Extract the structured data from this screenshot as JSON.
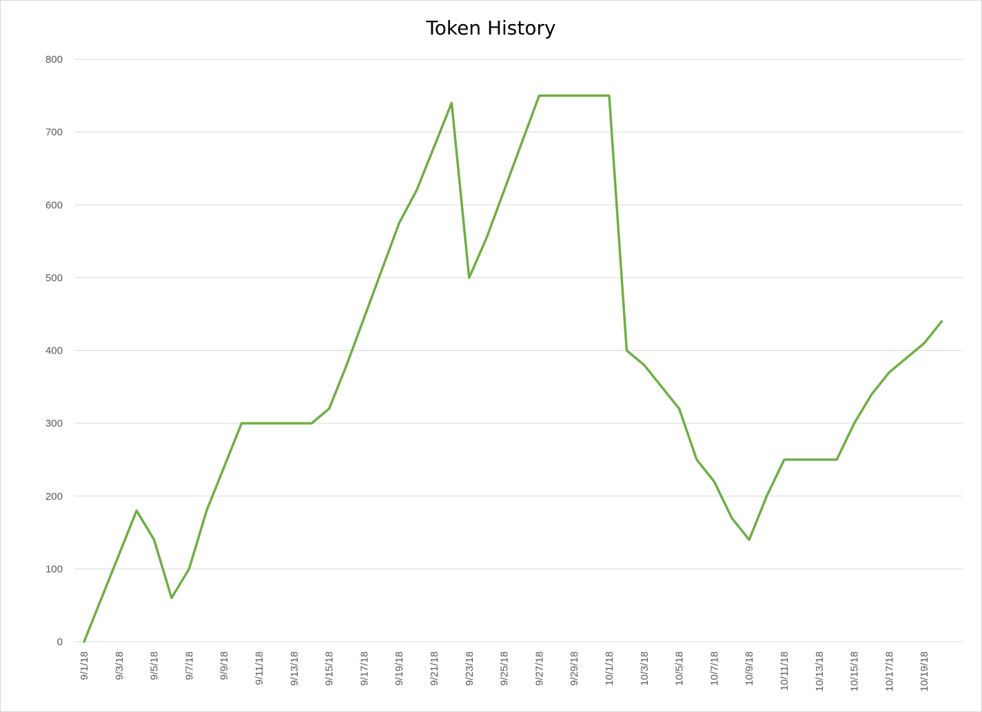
{
  "chart_data": {
    "type": "line",
    "title": "Token History",
    "xlabel": "",
    "ylabel": "",
    "ylim": [
      0,
      800
    ],
    "y_ticks": [
      0,
      100,
      200,
      300,
      400,
      500,
      600,
      700,
      800
    ],
    "grid": true,
    "legend": "none",
    "x_tick_labels": [
      "9/1/18",
      "9/3/18",
      "9/5/18",
      "9/7/18",
      "9/9/18",
      "9/11/18",
      "9/13/18",
      "9/15/18",
      "9/17/18",
      "9/19/18",
      "9/21/18",
      "9/23/18",
      "9/25/18",
      "9/27/18",
      "9/29/18",
      "10/1/18",
      "10/3/18",
      "10/5/18",
      "10/7/18",
      "10/9/18",
      "10/11/18",
      "10/13/18",
      "10/15/18",
      "10/17/18",
      "10/19/18"
    ],
    "x": [
      "9/1/18",
      "9/2/18",
      "9/3/18",
      "9/4/18",
      "9/5/18",
      "9/6/18",
      "9/7/18",
      "9/8/18",
      "9/9/18",
      "9/10/18",
      "9/11/18",
      "9/12/18",
      "9/13/18",
      "9/14/18",
      "9/15/18",
      "9/16/18",
      "9/17/18",
      "9/18/18",
      "9/19/18",
      "9/20/18",
      "9/21/18",
      "9/22/18",
      "9/23/18",
      "9/24/18",
      "9/25/18",
      "9/26/18",
      "9/27/18",
      "9/28/18",
      "9/29/18",
      "9/30/18",
      "10/1/18",
      "10/2/18",
      "10/3/18",
      "10/4/18",
      "10/5/18",
      "10/6/18",
      "10/7/18",
      "10/8/18",
      "10/9/18",
      "10/10/18",
      "10/11/18",
      "10/12/18",
      "10/13/18",
      "10/14/18",
      "10/15/18",
      "10/16/18",
      "10/17/18",
      "10/18/18",
      "10/19/18",
      "10/20/18"
    ],
    "series": [
      {
        "values": [
          0,
          60,
          120,
          180,
          140,
          60,
          100,
          180,
          240,
          300,
          300,
          300,
          300,
          300,
          320,
          380,
          445,
          510,
          575,
          620,
          680,
          740,
          500,
          555,
          620,
          685,
          750,
          750,
          750,
          750,
          750,
          400,
          380,
          350,
          320,
          250,
          220,
          170,
          140,
          200,
          250,
          250,
          250,
          250,
          300,
          340,
          370,
          390,
          410,
          440
        ],
        "color": "#70ad47"
      }
    ]
  }
}
